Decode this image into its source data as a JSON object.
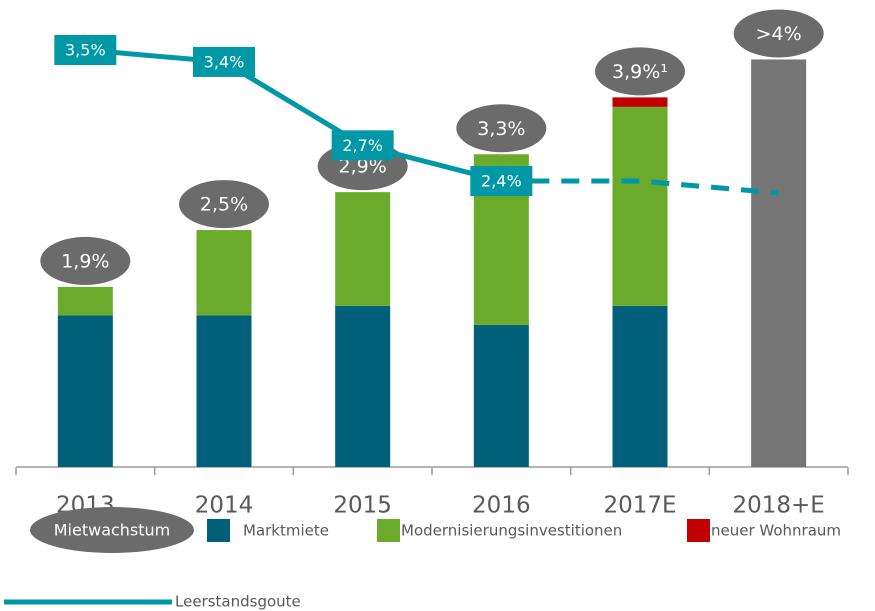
{
  "chart_data": {
    "type": "bar",
    "stacked": true,
    "categories": [
      "2013",
      "2014",
      "2015",
      "2016",
      "2017E",
      "2018+E"
    ],
    "ylim": [
      0,
      4.4
    ],
    "y2lim": [
      0,
      3.5
    ],
    "series": [
      {
        "name": "Marktmiete",
        "color": "#00607a",
        "values": [
          1.6,
          1.6,
          1.7,
          1.5,
          1.7,
          null
        ]
      },
      {
        "name": "Modernisierungsinvestitionen",
        "color": "#6aab2b",
        "values": [
          0.3,
          0.9,
          1.2,
          1.8,
          2.1,
          null
        ]
      },
      {
        "name": "neuer Wohnraum",
        "color": "#c00000",
        "values": [
          null,
          null,
          null,
          null,
          0.1,
          null
        ]
      },
      {
        "color": "#757575",
        "values": [
          null,
          null,
          null,
          null,
          null,
          4.3
        ]
      },
      {
        "name": "Leerstandsgoute",
        "type": "line",
        "axis": "y2",
        "color": "#0097a7",
        "values": [
          3.5,
          3.4,
          2.7,
          2.4,
          null,
          null
        ],
        "value_labels": [
          "3,5%",
          "3,4%",
          "2,7%",
          "2,4%",
          null,
          null
        ]
      },
      {
        "type": "line",
        "axis": "y2",
        "dashed": true,
        "color": "#0097a7",
        "values": [
          null,
          null,
          null,
          2.4,
          2.4,
          2.3
        ]
      }
    ],
    "totals": {
      "name": "Mietwachstum",
      "color": "#6b6b6b",
      "values": [
        1.9,
        2.5,
        2.9,
        3.3,
        3.9,
        4
      ],
      "value_labels": [
        "1,9%",
        "2,5%",
        "2,9%",
        "3,3%",
        "3,9%¹",
        ">4%"
      ]
    }
  }
}
